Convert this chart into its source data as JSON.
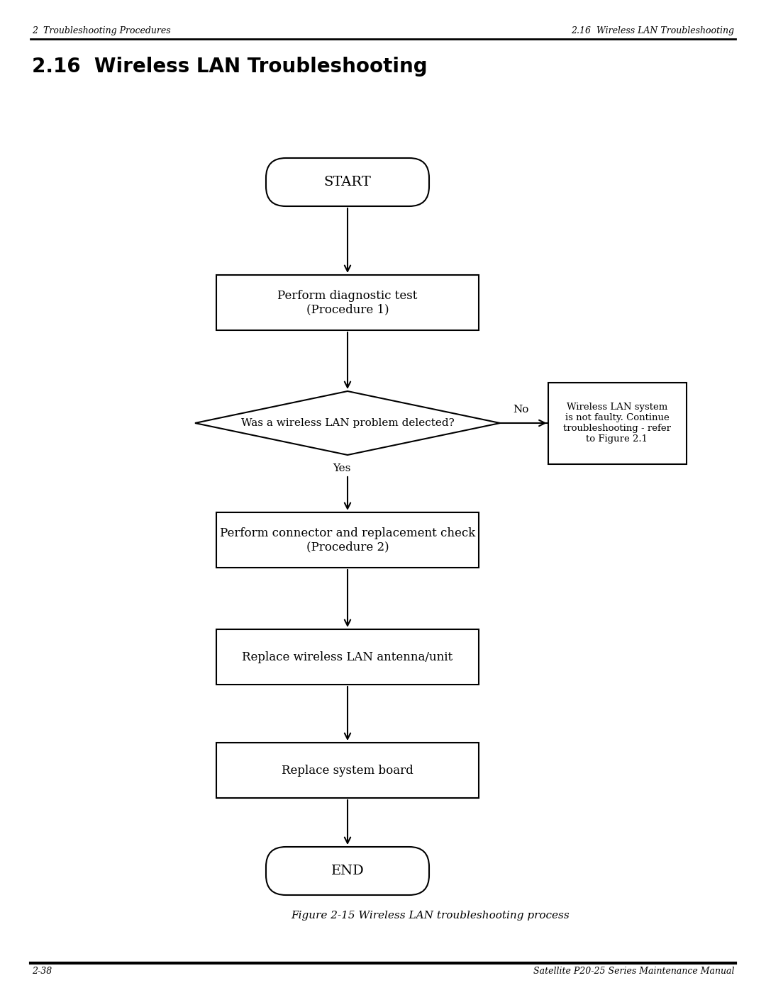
{
  "bg_color": "#ffffff",
  "header_left": "2  Troubleshooting Procedures",
  "header_right": "2.16  Wireless LAN Troubleshooting",
  "section_title": "2.16  Wireless LAN Troubleshooting",
  "footer_left": "2-38",
  "footer_right": "Satellite P20-25 Series Maintenance Manual",
  "figure_caption": "Figure 2-15 Wireless LAN troubleshooting process",
  "start_label": "START",
  "end_label": "END",
  "diag_label": "Perform diagnostic test\n(Procedure 1)",
  "diamond_label": "Was a wireless LAN problem delected?",
  "proc2_label": "Perform connector and replacement check\n(Procedure 2)",
  "ant_label": "Replace wireless LAN antenna/unit",
  "sys_label": "Replace system board",
  "no_box_label": "Wireless LAN system\nis not faulty. Continue\ntroubleshooting - refer\nto Figure 2.1",
  "yes_label": "Yes",
  "no_label": "No"
}
